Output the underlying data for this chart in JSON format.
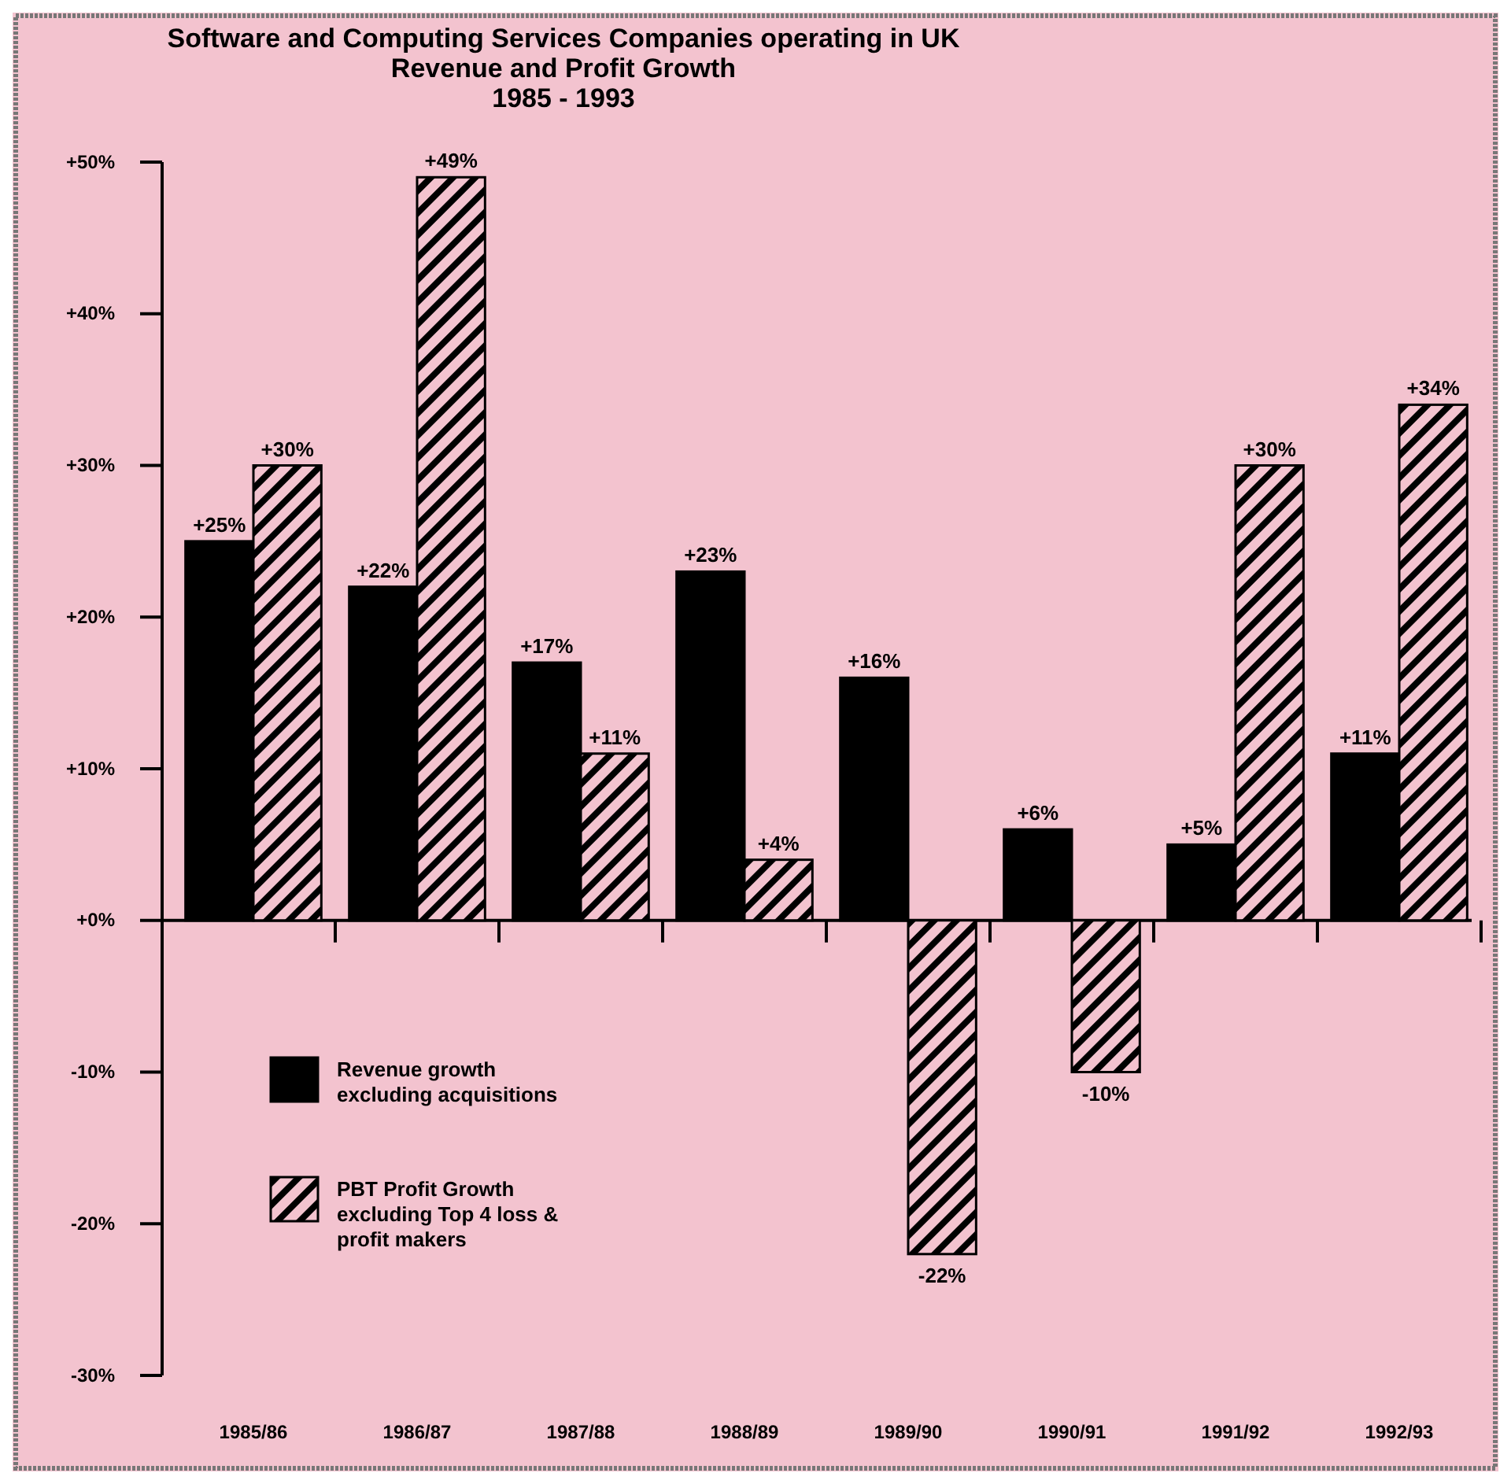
{
  "chart_data": {
    "type": "bar",
    "title": "Software and Computing Services Companies operating in UK",
    "subtitle": "Revenue and Profit Growth\n1985 - 1993",
    "categories": [
      "1985/86",
      "1986/87",
      "1987/88",
      "1988/89",
      "1989/90",
      "1990/91",
      "1991/92",
      "1992/93"
    ],
    "series": [
      {
        "name": "Revenue growth excluding acquisitions",
        "color": "#000000",
        "values": [
          25,
          22,
          17,
          23,
          16,
          6,
          5,
          11
        ],
        "value_labels": [
          "+25%",
          "+22%",
          "+17%",
          "+23%",
          "+16%",
          "+6%",
          "+5%",
          "+11%"
        ]
      },
      {
        "name": "PBT Profit Growth excluding Top 4 loss & profit makers",
        "color": "#000000",
        "values": [
          30,
          49,
          11,
          4,
          -22,
          -10,
          30,
          34
        ],
        "value_labels": [
          "+30%",
          "+49%",
          "+11%",
          "+4%",
          "-22%",
          "-10%",
          "+30%",
          "+34%"
        ]
      }
    ],
    "ylim": [
      -30,
      50
    ],
    "yticks": [
      {
        "value": 50,
        "label": "+50%"
      },
      {
        "value": 40,
        "label": "+40%"
      },
      {
        "value": 30,
        "label": "+30%"
      },
      {
        "value": 20,
        "label": "+20%"
      },
      {
        "value": 10,
        "label": "+10%"
      },
      {
        "value": 0,
        "label": "+0%"
      },
      {
        "value": -10,
        "label": "-10%"
      },
      {
        "value": -20,
        "label": "-20%"
      },
      {
        "value": -30,
        "label": "-30%"
      }
    ],
    "legend": "bottom left"
  }
}
